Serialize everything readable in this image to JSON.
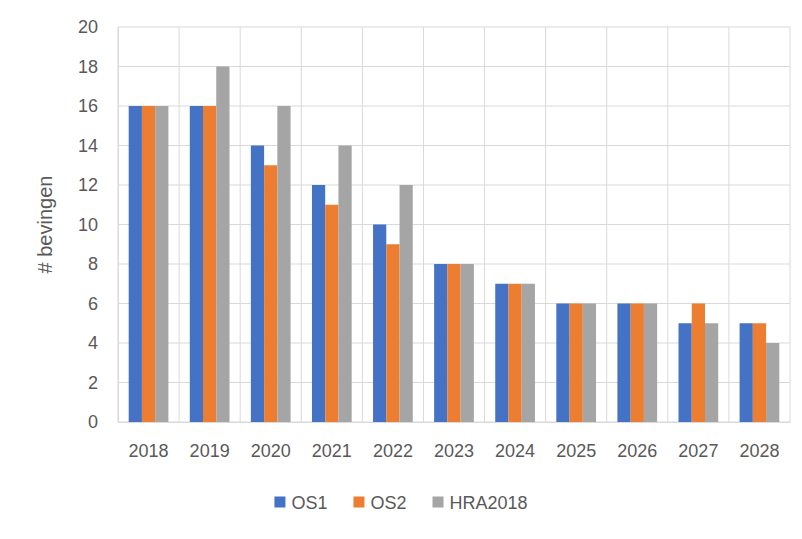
{
  "chart_data": {
    "type": "bar",
    "y_label": "# bevingen",
    "categories": [
      "2018",
      "2019",
      "2020",
      "2021",
      "2022",
      "2023",
      "2024",
      "2025",
      "2026",
      "2027",
      "2028"
    ],
    "series": [
      {
        "name": "OS1",
        "color": "#4472c4",
        "values": [
          16,
          16,
          14,
          12,
          10,
          8,
          7,
          6,
          6,
          5,
          5
        ]
      },
      {
        "name": "OS2",
        "color": "#ed7d31",
        "values": [
          16,
          16,
          13,
          11,
          9,
          8,
          7,
          6,
          6,
          6,
          5
        ]
      },
      {
        "name": "HRA2018",
        "color": "#a5a5a5",
        "values": [
          16,
          18,
          16,
          14,
          12,
          8,
          7,
          6,
          6,
          5,
          4
        ]
      }
    ],
    "ylim": [
      0,
      20
    ],
    "yticks": [
      0,
      2,
      4,
      6,
      8,
      10,
      12,
      14,
      16,
      18,
      20
    ],
    "grid": true,
    "legend": "bottom"
  }
}
